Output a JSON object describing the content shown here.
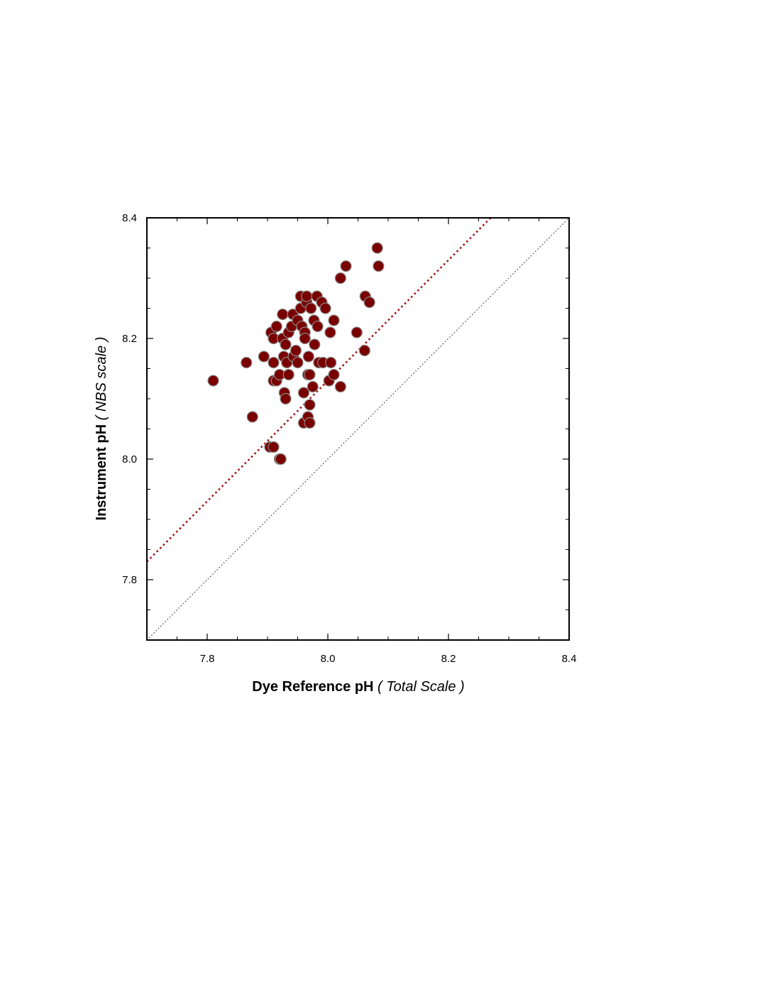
{
  "chart_data": {
    "type": "scatter",
    "xlabel": "Dye Reference pH",
    "xlabel_scale": "( Total Scale )",
    "ylabel": "Instrument pH",
    "ylabel_scale": "( NBS scale )",
    "xlim": [
      7.7,
      8.4
    ],
    "ylim": [
      7.7,
      8.4
    ],
    "xticks": [
      7.8,
      {
        "value": 8,
        "label": "8.0"
      },
      8.2,
      8.4
    ],
    "yticks": [
      7.8,
      {
        "value": 8,
        "label": "8.0"
      },
      8.2,
      8.4
    ],
    "xminor": [
      7.75,
      7.8,
      7.85,
      7.9,
      7.95,
      8.0,
      8.05,
      8.1,
      8.15,
      8.2,
      8.25,
      8.3,
      8.35
    ],
    "yminor": [
      7.75,
      7.8,
      7.85,
      7.9,
      7.95,
      8.0,
      8.05,
      8.1,
      8.15,
      8.2,
      8.25,
      8.3,
      8.35
    ],
    "color": "#7a0000",
    "edge_color": "#8a8a8a",
    "lines": [
      {
        "slope": 1,
        "intercept": 0,
        "color": "#333333"
      },
      {
        "slope": 1,
        "intercept": 0.13,
        "color": "#a01010"
      }
    ],
    "x": [
      7.81,
      7.865,
      7.875,
      7.894,
      7.904,
      7.91,
      7.92,
      7.922,
      7.906,
      7.91,
      7.915,
      7.91,
      7.91,
      7.915,
      7.92,
      7.925,
      7.925,
      7.927,
      7.93,
      7.928,
      7.93,
      7.932,
      7.935,
      7.935,
      7.94,
      7.942,
      7.943,
      7.947,
      7.95,
      7.95,
      7.955,
      7.955,
      7.957,
      7.96,
      7.96,
      7.962,
      7.962,
      7.965,
      7.965,
      7.967,
      7.967,
      7.968,
      7.97,
      7.97,
      7.97,
      7.972,
      7.975,
      7.977,
      7.978,
      7.982,
      7.983,
      7.985,
      7.99,
      7.992,
      7.996,
      8.002,
      8.004,
      8.005,
      8.01,
      8.01,
      8.021,
      8.021,
      8.03,
      8.048,
      8.061,
      8.062,
      8.069,
      8.082,
      8.084
    ],
    "y": [
      8.13,
      8.16,
      8.07,
      8.17,
      8.02,
      8.02,
      8.0,
      8.0,
      8.21,
      8.2,
      8.22,
      8.16,
      8.13,
      8.13,
      8.14,
      8.24,
      8.2,
      8.17,
      8.19,
      8.11,
      8.1,
      8.16,
      8.14,
      8.21,
      8.22,
      8.24,
      8.17,
      8.18,
      8.16,
      8.23,
      8.25,
      8.27,
      8.22,
      8.06,
      8.11,
      8.21,
      8.2,
      8.26,
      8.27,
      8.07,
      8.14,
      8.17,
      8.06,
      8.14,
      8.09,
      8.25,
      8.12,
      8.23,
      8.19,
      8.27,
      8.22,
      8.16,
      8.26,
      8.16,
      8.25,
      8.13,
      8.21,
      8.16,
      8.23,
      8.14,
      8.12,
      8.3,
      8.32,
      8.21,
      8.18,
      8.27,
      8.26,
      8.35,
      8.32
    ]
  }
}
